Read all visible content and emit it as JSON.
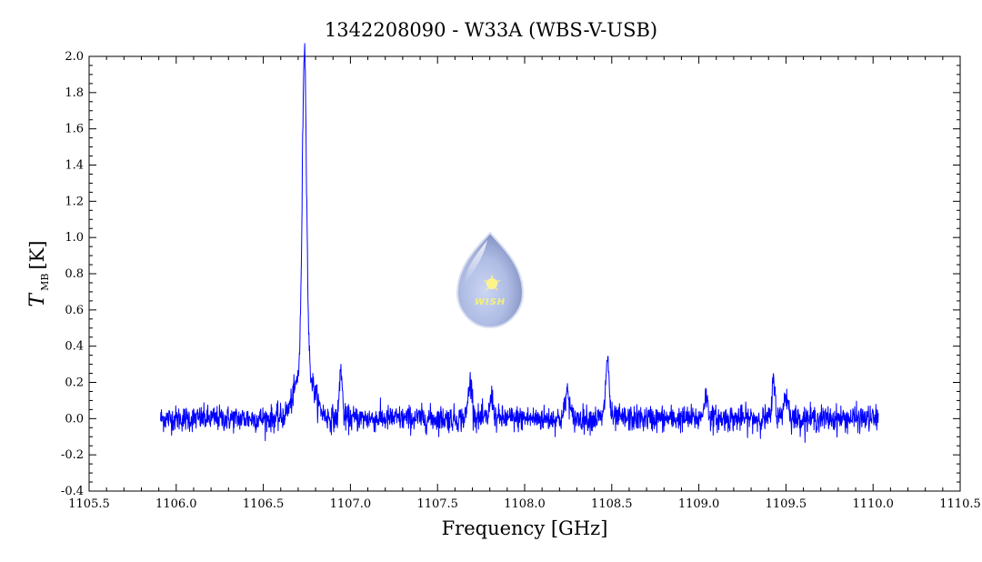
{
  "chart_data": {
    "type": "line",
    "title": "1342208090 - W33A (WBS-V-USB)",
    "xlabel": "Frequency [GHz]",
    "ylabel_main": "T",
    "ylabel_sub": "MB",
    "ylabel_unit": "[K]",
    "xlim": [
      1105.5,
      1110.5
    ],
    "ylim": [
      -0.4,
      2.0
    ],
    "xticks": [
      "1105.5",
      "1106.0",
      "1106.5",
      "1107.0",
      "1107.5",
      "1108.0",
      "1108.5",
      "1109.0",
      "1109.5",
      "1110.0",
      "1110.5"
    ],
    "yticks": [
      "-0.4",
      "-0.2",
      "0.0",
      "0.2",
      "0.4",
      "0.6",
      "0.8",
      "1.0",
      "1.2",
      "1.4",
      "1.6",
      "1.8",
      "2.0"
    ],
    "grid": false,
    "series": [
      {
        "color": "#0000ff",
        "x_range": [
          1105.91,
          1110.03
        ],
        "baseline": 0.0,
        "noise_rms": 0.035,
        "peaks": [
          {
            "x": 1106.736,
            "height": 1.75,
            "width": 0.012
          },
          {
            "x": 1106.736,
            "height": 0.3,
            "width": 0.05
          },
          {
            "x": 1106.945,
            "height": 0.28,
            "width": 0.008
          },
          {
            "x": 1107.688,
            "height": 0.2,
            "width": 0.012
          },
          {
            "x": 1107.81,
            "height": 0.12,
            "width": 0.01
          },
          {
            "x": 1108.245,
            "height": 0.15,
            "width": 0.012
          },
          {
            "x": 1108.475,
            "height": 0.33,
            "width": 0.01
          },
          {
            "x": 1109.04,
            "height": 0.12,
            "width": 0.012
          },
          {
            "x": 1109.43,
            "height": 0.23,
            "width": 0.008
          },
          {
            "x": 1109.5,
            "height": 0.12,
            "width": 0.015
          }
        ]
      }
    ]
  },
  "logo": {
    "text": "WISH",
    "color": "#aab8e0"
  }
}
